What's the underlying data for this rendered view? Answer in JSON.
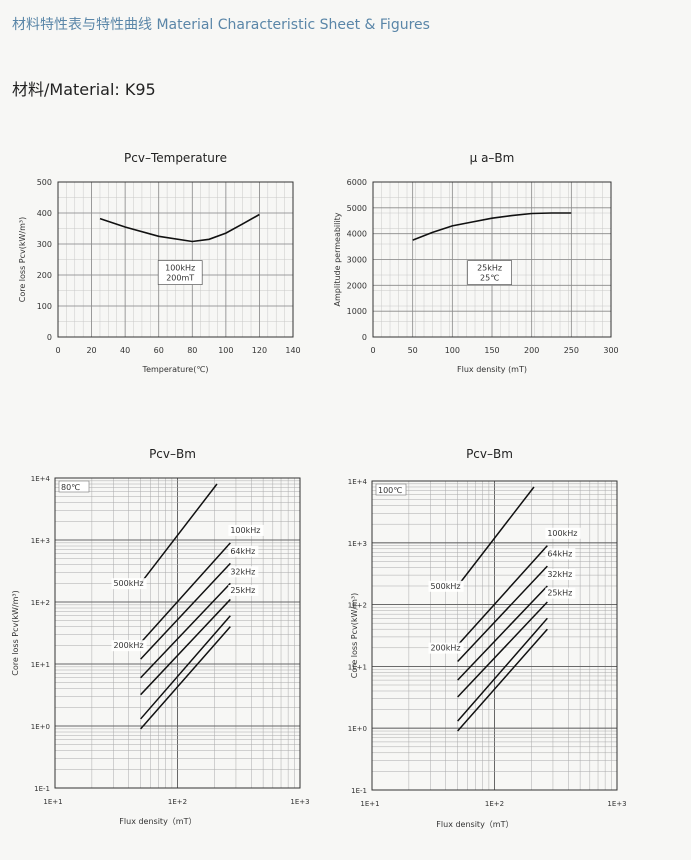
{
  "page": {
    "header": "材料特性表与特性曲线 Material Characteristic Sheet & Figures",
    "material": "材料/Material: K95"
  },
  "chart_data": [
    {
      "id": "pcv-temp",
      "type": "line",
      "title": "Pcv–Temperature",
      "xlabel": "Temperature(℃)",
      "ylabel": "Core loss Pcv(kW/m³)",
      "xlim": [
        0,
        140
      ],
      "ylim": [
        0,
        500
      ],
      "xticks": [
        0,
        20,
        40,
        60,
        80,
        100,
        120,
        140
      ],
      "yticks": [
        0,
        100,
        200,
        300,
        400,
        500
      ],
      "grid": true,
      "annotation": [
        "100kHz",
        "200mT"
      ],
      "series": [
        {
          "x": [
            25,
            40,
            60,
            80,
            90,
            100,
            110,
            120
          ],
          "y": [
            382,
            355,
            325,
            308,
            315,
            335,
            365,
            395
          ]
        }
      ]
    },
    {
      "id": "mu-bm",
      "type": "line",
      "title": "μ a–Bm",
      "xlabel": "Flux density (mT)",
      "ylabel": "Amplitude permeability",
      "xlim": [
        0,
        300
      ],
      "ylim": [
        0,
        6000
      ],
      "xticks": [
        0,
        50,
        100,
        150,
        200,
        250,
        300
      ],
      "yticks": [
        0,
        1000,
        2000,
        3000,
        4000,
        5000,
        6000
      ],
      "grid": true,
      "annotation": [
        "25kHz",
        "25℃"
      ],
      "series": [
        {
          "x": [
            50,
            75,
            100,
            125,
            150,
            175,
            200,
            225,
            250
          ],
          "y": [
            3750,
            4050,
            4300,
            4450,
            4600,
            4700,
            4780,
            4800,
            4800
          ]
        }
      ]
    },
    {
      "id": "pcv-bm-80",
      "type": "line",
      "title": "Pcv–Bm",
      "xlabel": "Flux density（mT）",
      "ylabel": "Core loss Pcv(kW/m³)",
      "xscale": "log",
      "yscale": "log",
      "xlim": [
        10,
        1000
      ],
      "ylim": [
        0.1,
        10000
      ],
      "xticks": [
        "1E+1",
        "1E+2",
        "1E+3"
      ],
      "yticks": [
        "1E-1",
        "1E+0",
        "1E+1",
        "1E+2",
        "1E+3",
        "1E+4"
      ],
      "grid": true,
      "annotation": [
        "80℃"
      ],
      "series": [
        {
          "name": "500kHz",
          "x": [
            50,
            210
          ],
          "y": [
            200,
            8000
          ]
        },
        {
          "name": "100kHz",
          "x": [
            50,
            270
          ],
          "y": [
            22,
            900
          ]
        },
        {
          "name": "64kHz",
          "x": [
            50,
            270
          ],
          "y": [
            12,
            420
          ]
        },
        {
          "name": "32kHz",
          "x": [
            50,
            270
          ],
          "y": [
            6,
            200
          ]
        },
        {
          "name": "25kHz",
          "x": [
            50,
            270
          ],
          "y": [
            3.2,
            110
          ]
        },
        {
          "name": "200kHz",
          "x": [
            50,
            270
          ],
          "y": [
            1.3,
            60
          ]
        },
        {
          "name": "",
          "x": [
            50,
            270
          ],
          "y": [
            0.9,
            40
          ]
        }
      ],
      "series_labels": [
        {
          "text": "500kHz",
          "x": 30,
          "y": 180
        },
        {
          "text": "100kHz",
          "x": 270,
          "y": 1300
        },
        {
          "text": "64kHz",
          "x": 270,
          "y": 600
        },
        {
          "text": "32kHz",
          "x": 270,
          "y": 280
        },
        {
          "text": "25kHz",
          "x": 270,
          "y": 140
        },
        {
          "text": "200kHz",
          "x": 30,
          "y": 18
        }
      ]
    },
    {
      "id": "pcv-bm-100",
      "type": "line",
      "title": "Pcv–Bm",
      "xlabel": "Flux density（mT）",
      "ylabel": "Core loss Pcv(kW/m³)",
      "xscale": "log",
      "yscale": "log",
      "xlim": [
        10,
        1000
      ],
      "ylim": [
        0.1,
        10000
      ],
      "xticks": [
        "1E+1",
        "1E+2",
        "1E+3"
      ],
      "yticks": [
        "1E-1",
        "1E+0",
        "1E+1",
        "1E+2",
        "1E+3",
        "1E+4"
      ],
      "grid": true,
      "annotation": [
        "100℃"
      ],
      "series": [
        {
          "name": "500kHz",
          "x": [
            50,
            210
          ],
          "y": [
            200,
            8000
          ]
        },
        {
          "name": "100kHz",
          "x": [
            50,
            270
          ],
          "y": [
            22,
            900
          ]
        },
        {
          "name": "64kHz",
          "x": [
            50,
            270
          ],
          "y": [
            12,
            420
          ]
        },
        {
          "name": "32kHz",
          "x": [
            50,
            270
          ],
          "y": [
            6,
            200
          ]
        },
        {
          "name": "25kHz",
          "x": [
            50,
            270
          ],
          "y": [
            3.2,
            110
          ]
        },
        {
          "name": "200kHz",
          "x": [
            50,
            270
          ],
          "y": [
            1.3,
            60
          ]
        },
        {
          "name": "",
          "x": [
            50,
            270
          ],
          "y": [
            0.9,
            40
          ]
        }
      ],
      "series_labels": [
        {
          "text": "500kHz",
          "x": 30,
          "y": 180
        },
        {
          "text": "100kHz",
          "x": 270,
          "y": 1300
        },
        {
          "text": "64kHz",
          "x": 270,
          "y": 600
        },
        {
          "text": "32kHz",
          "x": 270,
          "y": 280
        },
        {
          "text": "25kHz",
          "x": 270,
          "y": 140
        },
        {
          "text": "200kHz",
          "x": 30,
          "y": 18
        }
      ]
    }
  ]
}
